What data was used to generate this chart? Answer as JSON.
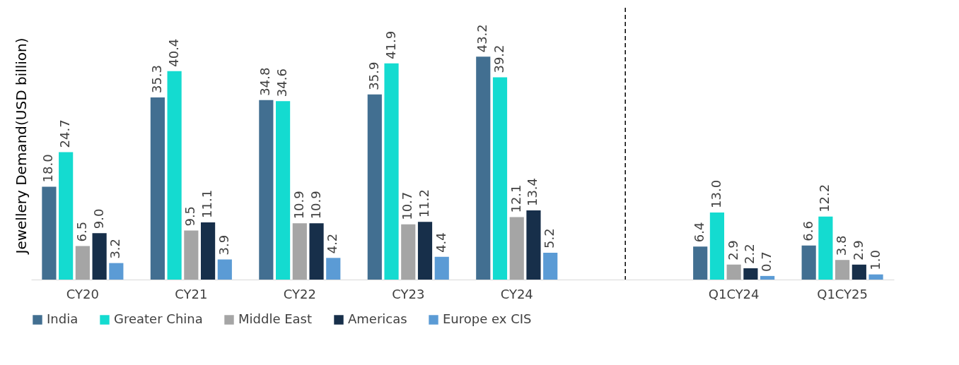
{
  "chart_data": {
    "type": "bar",
    "ylabel": "Jewellery Demand(USD billion)",
    "categories": [
      "CY20",
      "CY21",
      "CY22",
      "CY23",
      "CY24",
      null,
      "Q1CY24",
      "Q1CY25"
    ],
    "series": [
      {
        "name": "India",
        "color": "#426f91",
        "values": [
          18.0,
          35.3,
          34.8,
          35.9,
          43.2,
          null,
          6.4,
          6.6
        ],
        "value_labels": [
          "18.0",
          "35.3",
          "34.8",
          "35.9",
          "43.2",
          null,
          "6.4",
          "6.6"
        ]
      },
      {
        "name": "Greater China",
        "color": "#14dbd0",
        "values": [
          24.7,
          40.4,
          34.6,
          41.9,
          39.2,
          null,
          13.0,
          12.2
        ],
        "value_labels": [
          "24.7",
          "40.4",
          "34.6",
          "41.9",
          "39.2",
          null,
          "13.0",
          "12.2"
        ]
      },
      {
        "name": "Middle East",
        "color": "#a5a5a5",
        "values": [
          6.5,
          9.5,
          10.9,
          10.7,
          12.1,
          null,
          2.9,
          3.8
        ],
        "value_labels": [
          "6.5",
          "9.5",
          "10.9",
          "10.7",
          "12.1",
          null,
          "2.9",
          "3.8"
        ]
      },
      {
        "name": "Americas",
        "color": "#172f4a",
        "values": [
          9.0,
          11.1,
          10.9,
          11.2,
          13.4,
          null,
          2.2,
          2.9
        ],
        "value_labels": [
          "9.0",
          "11.1",
          "10.9",
          "11.2",
          "13.4",
          null,
          "2.2",
          "2.9"
        ]
      },
      {
        "name": "Europe ex CIS",
        "color": "#5b9bd5",
        "values": [
          3.2,
          3.9,
          4.2,
          4.4,
          5.2,
          null,
          0.7,
          1.0
        ],
        "value_labels": [
          "3.2",
          "3.9",
          "4.2",
          "4.4",
          "5.2",
          null,
          "0.7",
          "1.0"
        ]
      }
    ],
    "tick_labels": "x",
    "legend": "bottom",
    "ref_lines": [
      {
        "axis": "x",
        "value": null,
        "line_style": "dashed",
        "color": "#000000"
      }
    ]
  }
}
